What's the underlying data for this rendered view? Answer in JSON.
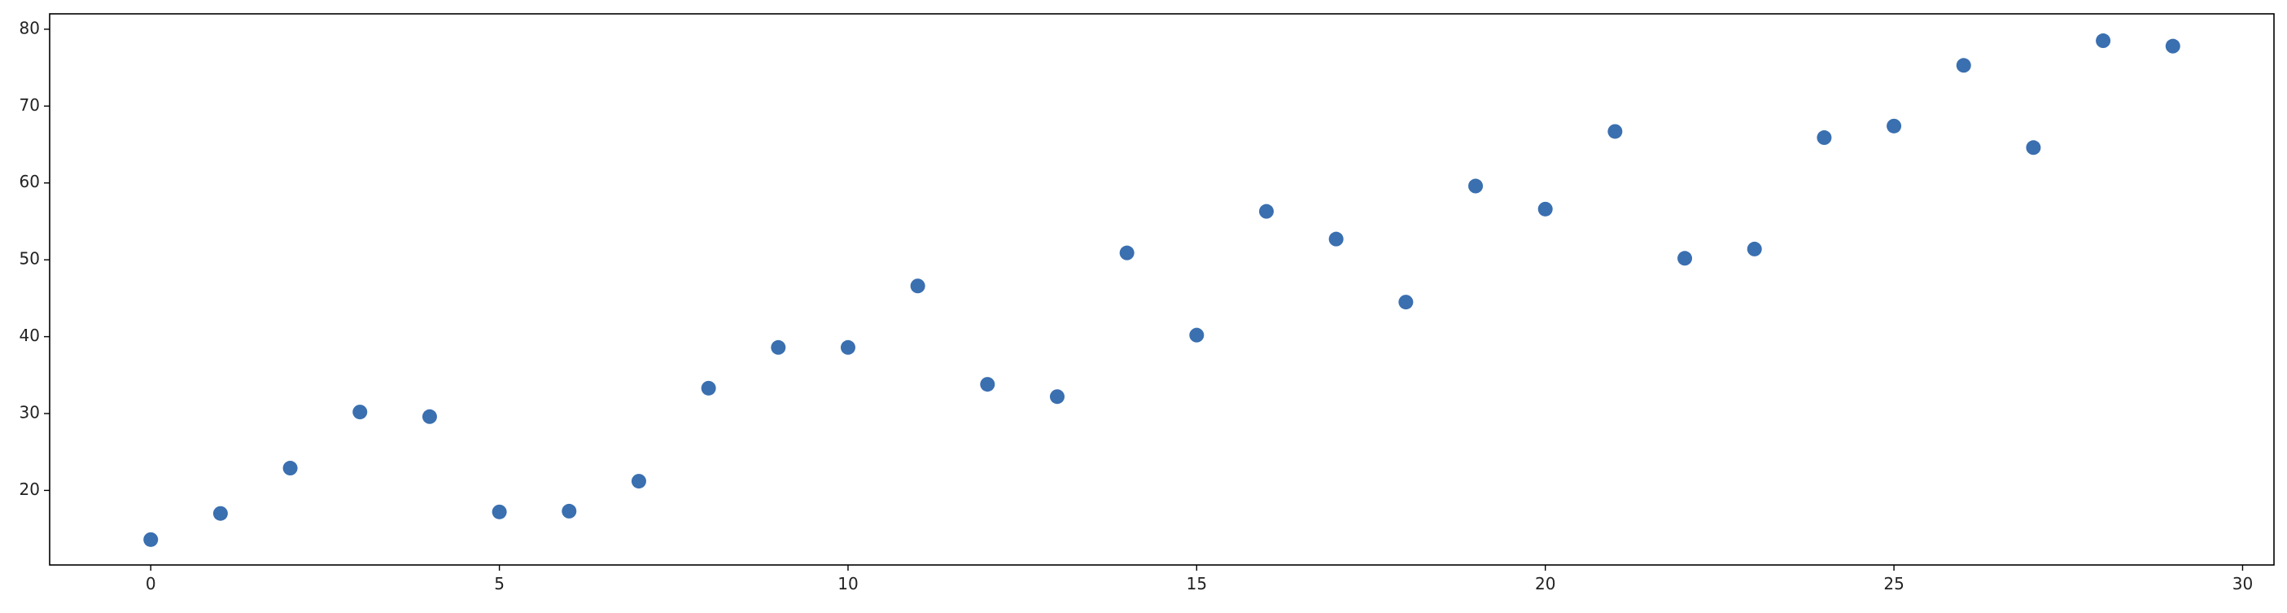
{
  "chart_data": {
    "type": "scatter",
    "title": "",
    "xlabel": "",
    "ylabel": "",
    "xlim": [
      -1.45,
      30.45
    ],
    "ylim": [
      10.3,
      82.0
    ],
    "xticks": [
      0,
      5,
      10,
      15,
      20,
      25,
      30
    ],
    "yticks": [
      20,
      30,
      40,
      50,
      60,
      70,
      80
    ],
    "grid": false,
    "legend": "none",
    "marker_color": "#3a6fb0",
    "series": [
      {
        "x": [
          0,
          1,
          2,
          3,
          4,
          5,
          6,
          7,
          8,
          9,
          10,
          11,
          12,
          13,
          14,
          15,
          16,
          17,
          18,
          19,
          20,
          21,
          22,
          23,
          24,
          25,
          26,
          27,
          28,
          29
        ],
        "y": [
          13.6,
          17.0,
          22.9,
          30.2,
          29.6,
          17.2,
          17.3,
          21.2,
          33.3,
          38.6,
          38.6,
          46.6,
          33.8,
          32.2,
          50.9,
          40.2,
          56.3,
          52.7,
          44.5,
          59.6,
          56.6,
          66.7,
          50.2,
          51.4,
          65.9,
          67.4,
          75.3,
          64.6,
          78.5,
          77.8
        ]
      }
    ]
  }
}
